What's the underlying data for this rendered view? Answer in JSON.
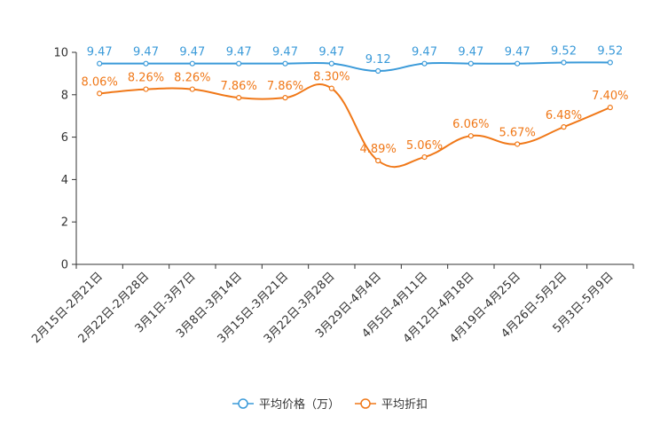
{
  "chart_data": {
    "type": "line",
    "title": "",
    "xlabel": "",
    "ylabel": "",
    "ylim": [
      0,
      10
    ],
    "yticks": [
      0,
      2,
      4,
      6,
      8,
      10
    ],
    "grid": false,
    "legend_position": "bottom-center",
    "categories": [
      "2月15日-2月21日",
      "2月22日-2月28日",
      "3月1日-3月7日",
      "3月8日-3月14日",
      "3月15日-3月21日",
      "3月22日-3月28日",
      "3月29日-4月4日",
      "4月5日-4月11日",
      "4月12日-4月18日",
      "4月19日-4月25日",
      "4月26日-5月2日",
      "5月3日-5月9日"
    ],
    "series": [
      {
        "name": "平均价格（万）",
        "color": "#3a9ad9",
        "values": [
          9.47,
          9.47,
          9.47,
          9.47,
          9.47,
          9.47,
          9.12,
          9.47,
          9.47,
          9.47,
          9.52,
          9.52
        ],
        "labels": [
          "9.47",
          "9.47",
          "9.47",
          "9.47",
          "9.47",
          "9.47",
          "9.12",
          "9.47",
          "9.47",
          "9.47",
          "9.52",
          "9.52"
        ]
      },
      {
        "name": "平均折扣",
        "color": "#f07818",
        "values": [
          8.06,
          8.26,
          8.26,
          7.86,
          7.86,
          8.3,
          4.89,
          5.06,
          6.06,
          5.67,
          6.48,
          7.4
        ],
        "labels": [
          "8.06%",
          "8.26%",
          "8.26%",
          "7.86%",
          "7.86%",
          "8.30%",
          "4.89%",
          "5.06%",
          "6.06%",
          "5.67%",
          "6.48%",
          "7.40%"
        ]
      }
    ]
  }
}
